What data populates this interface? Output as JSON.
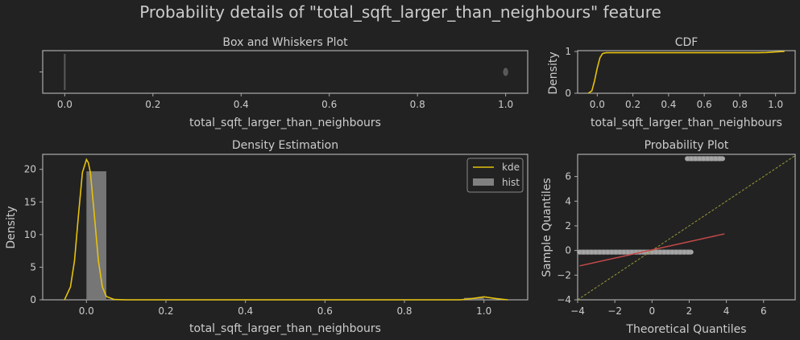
{
  "figure": {
    "title": "Probability details of \"total_sqft_larger_than_neighbours\" feature"
  },
  "colors": {
    "background": "#222222",
    "axis": "#aaaaaa",
    "text": "#cccccc",
    "kde": "#e6c20e",
    "hist": "#808080",
    "qq_points": "#bdbdbd",
    "fit_line": "#c84a4a",
    "ref_line": "#9a9a3a"
  },
  "chart_data": [
    {
      "id": "box",
      "type": "box",
      "title": "Box and Whiskers Plot",
      "xlabel": "total_sqft_larger_than_neighbours",
      "ylabel": "",
      "xlim": [
        -0.05,
        1.05
      ],
      "xticks": [
        "0.0",
        "0.2",
        "0.4",
        "0.6",
        "0.8",
        "1.0"
      ],
      "xtick_values": [
        0.0,
        0.2,
        0.4,
        0.6,
        0.8,
        1.0
      ],
      "box": {
        "min": 0.0,
        "q1": 0.0,
        "median": 0.0,
        "q3": 0.0,
        "max": 0.0
      },
      "outliers": [
        1.0
      ]
    },
    {
      "id": "cdf",
      "type": "line",
      "title": "CDF",
      "xlabel": "total_sqft_larger_than_neighbours",
      "ylabel": "Density",
      "xlim": [
        -0.11,
        1.11
      ],
      "ylim": [
        0,
        1.02
      ],
      "xticks": [
        "0.0",
        "0.2",
        "0.4",
        "0.6",
        "0.8",
        "1.0"
      ],
      "xtick_values": [
        0.0,
        0.2,
        0.4,
        0.6,
        0.8,
        1.0
      ],
      "yticks": [
        "0",
        "1"
      ],
      "ytick_values": [
        0,
        1
      ],
      "x": [
        -0.05,
        -0.03,
        -0.015,
        0.0,
        0.015,
        0.03,
        0.05,
        0.1,
        0.5,
        0.9,
        0.95,
        1.0,
        1.05
      ],
      "y": [
        0.0,
        0.06,
        0.3,
        0.6,
        0.85,
        0.95,
        0.97,
        0.97,
        0.97,
        0.97,
        0.975,
        0.99,
        1.0
      ]
    },
    {
      "id": "density",
      "type": "bar",
      "title": "Density Estimation",
      "xlabel": "total_sqft_larger_than_neighbours",
      "ylabel": "Density",
      "xlim": [
        -0.11,
        1.11
      ],
      "ylim": [
        0,
        22.3
      ],
      "xticks": [
        "0.0",
        "0.2",
        "0.4",
        "0.6",
        "0.8",
        "1.0"
      ],
      "xtick_values": [
        0.0,
        0.2,
        0.4,
        0.6,
        0.8,
        1.0
      ],
      "yticks": [
        "0",
        "5",
        "10",
        "15",
        "20"
      ],
      "ytick_values": [
        0,
        5,
        10,
        15,
        20
      ],
      "hist": {
        "bin_edges": [
          0.0,
          0.05,
          0.95,
          1.0
        ],
        "values": [
          19.7,
          0.0,
          0.3
        ]
      },
      "kde": {
        "x": [
          -0.055,
          -0.04,
          -0.03,
          -0.02,
          -0.01,
          0.0,
          0.005,
          0.01,
          0.02,
          0.03,
          0.04,
          0.05,
          0.07,
          0.1,
          0.5,
          0.94,
          0.97,
          1.0,
          1.03,
          1.06
        ],
        "y": [
          0.0,
          2.0,
          6.0,
          13.0,
          19.5,
          21.5,
          21.0,
          19.5,
          13.0,
          6.0,
          2.0,
          0.5,
          0.05,
          0.0,
          0.0,
          0.0,
          0.2,
          0.45,
          0.2,
          0.0
        ]
      },
      "legend": [
        {
          "label": "kde",
          "kind": "line"
        },
        {
          "label": "hist",
          "kind": "patch"
        }
      ],
      "legend_position": "top-right"
    },
    {
      "id": "probplot",
      "type": "scatter",
      "title": "Probability Plot",
      "xlabel": "Theoretical Quantiles",
      "ylabel": "Sample Quantiles",
      "xlim": [
        -4,
        7.7
      ],
      "ylim": [
        -4,
        7.8
      ],
      "xticks": [
        "−4",
        "−2",
        "0",
        "2",
        "4",
        "6"
      ],
      "xtick_values": [
        -4,
        -2,
        0,
        2,
        4,
        6
      ],
      "yticks": [
        "−4",
        "−2",
        "0",
        "2",
        "4",
        "6"
      ],
      "ytick_values": [
        -4,
        -2,
        0,
        2,
        4,
        6
      ],
      "point_segments": [
        {
          "x_from": -3.9,
          "x_to": 2.1,
          "y": -0.13
        },
        {
          "x_from": 1.9,
          "x_to": 3.8,
          "y": 7.45
        }
      ],
      "fit_line": {
        "x": [
          -3.9,
          3.9
        ],
        "y": [
          -1.25,
          1.35
        ]
      },
      "reference_line": {
        "x": [
          -4,
          7.7
        ],
        "y": [
          -4,
          7.7
        ]
      }
    }
  ]
}
